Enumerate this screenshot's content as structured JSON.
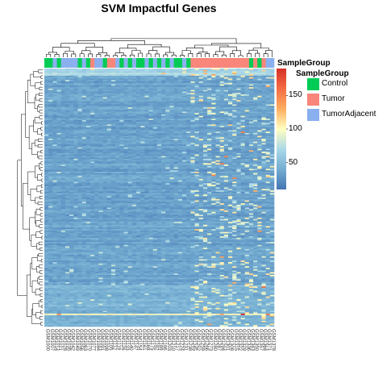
{
  "chart_data": {
    "type": "heatmap",
    "title": "SVM Impactful Genes",
    "annotation_label": "SampleGroup",
    "legend": {
      "title": "SampleGroup",
      "items": [
        {
          "name": "Control",
          "color": "#00CC55"
        },
        {
          "name": "Tumor",
          "color": "#F8867A"
        },
        {
          "name": "TumorAdjacent",
          "color": "#8AB0F0"
        }
      ]
    },
    "colorscale": {
      "ticks": [
        50,
        100,
        150
      ],
      "range": [
        10,
        190
      ],
      "colors": [
        "#4575b4",
        "#74add1",
        "#abd9e9",
        "#ffffbf",
        "#fdae61",
        "#f46d43",
        "#d73027"
      ]
    },
    "n_rows": 180,
    "n_columns": 55,
    "sample_groups": "Control,Control,TumorAdjacent,Control,TumorAdjacent,TumorAdjacent,TumorAdjacent,TumorAdjacent,Control,TumorAdjacent,Control,Tumor,TumorAdjacent,TumorAdjacent,Control,Tumor,Tumor,TumorAdjacent,Control,TumorAdjacent,Control,TumorAdjacent,Control,Control,TumorAdjacent,Control,TumorAdjacent,Control,TumorAdjacent,Control,TumorAdjacent,Control,Control,TumorAdjacent,Control,Tumor,Tumor,Tumor,Tumor,Tumor,Tumor,Tumor,Tumor,Tumor,Tumor,Tumor,Tumor,Tumor,Tumor,Control,Tumor,Control,Tumor,TumorAdjacent,TumorAdjacent",
    "grid": false
  }
}
